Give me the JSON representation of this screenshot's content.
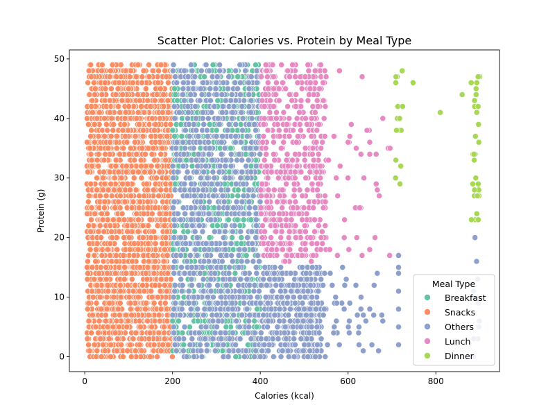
{
  "chart_data": {
    "type": "scatter",
    "title": "Scatter Plot: Calories vs. Protein by Meal Type",
    "xlabel": "Calories (kcal)",
    "ylabel": "Protein (g)",
    "xlim": [
      -35,
      945
    ],
    "ylim": [
      -2.5,
      51.5
    ],
    "xticks": [
      0,
      200,
      400,
      600,
      800
    ],
    "yticks": [
      0,
      10,
      20,
      30,
      40,
      50
    ],
    "grid": false,
    "legend": {
      "title": "Meal Type",
      "placement": "lower-right"
    },
    "series": [
      {
        "name": "Breakfast",
        "color": "#66c2a5"
      },
      {
        "name": "Snacks",
        "color": "#fc8d62"
      },
      {
        "name": "Others",
        "color": "#8da0cb"
      },
      {
        "name": "Lunch",
        "color": "#e78ac3"
      },
      {
        "name": "Dinner",
        "color": "#a6d854"
      }
    ]
  }
}
